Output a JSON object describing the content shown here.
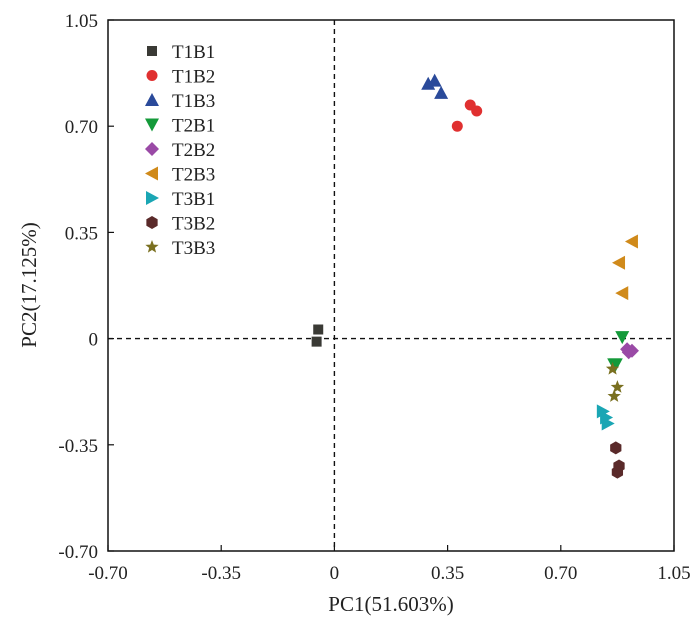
{
  "chart_data": {
    "type": "scatter",
    "xlabel": "PC1(51.603%)",
    "ylabel": "PC2(17.125%)",
    "xlim": [
      -0.7,
      1.05
    ],
    "ylim": [
      -0.7,
      1.05
    ],
    "xticks": [
      "-0.70",
      "-0.35",
      "0",
      "0.35",
      "0.70",
      "1.05"
    ],
    "yticks": [
      "-0.70",
      "-0.35",
      "0",
      "0.35",
      "0.70",
      "1.05"
    ],
    "xtick_values": [
      -0.7,
      -0.35,
      0,
      0.35,
      0.7,
      1.05
    ],
    "ytick_values": [
      -0.7,
      -0.35,
      0,
      0.35,
      0.7,
      1.05
    ],
    "reference_lines": {
      "x": 0,
      "y": 0,
      "style": "dashed"
    },
    "legend_position": "top-left",
    "series": [
      {
        "name": "T1B1",
        "marker": "square",
        "color": "#3a3a35",
        "points": [
          [
            -0.05,
            0.03
          ],
          [
            -0.055,
            -0.01
          ]
        ]
      },
      {
        "name": "T1B2",
        "marker": "circle",
        "color": "#e03030",
        "points": [
          [
            0.42,
            0.77
          ],
          [
            0.44,
            0.75
          ],
          [
            0.38,
            0.7
          ]
        ]
      },
      {
        "name": "T1B3",
        "marker": "triangle-up",
        "color": "#2a4a9a",
        "points": [
          [
            0.29,
            0.84
          ],
          [
            0.31,
            0.85
          ],
          [
            0.33,
            0.81
          ]
        ]
      },
      {
        "name": "T2B1",
        "marker": "triangle-down",
        "color": "#149a3a",
        "points": [
          [
            0.89,
            0.005
          ],
          [
            0.87,
            -0.085
          ],
          [
            0.865,
            -0.085
          ]
        ]
      },
      {
        "name": "T2B2",
        "marker": "diamond",
        "color": "#9a4aa6",
        "points": [
          [
            0.905,
            -0.035
          ],
          [
            0.92,
            -0.04
          ],
          [
            0.91,
            -0.045
          ]
        ]
      },
      {
        "name": "T2B3",
        "marker": "triangle-left",
        "color": "#d08a1a",
        "points": [
          [
            0.92,
            0.32
          ],
          [
            0.88,
            0.25
          ],
          [
            0.89,
            0.15
          ]
        ]
      },
      {
        "name": "T3B1",
        "marker": "triangle-right",
        "color": "#1aa6b4",
        "points": [
          [
            0.83,
            -0.24
          ],
          [
            0.84,
            -0.26
          ],
          [
            0.845,
            -0.28
          ]
        ]
      },
      {
        "name": "T3B2",
        "marker": "hexagon",
        "color": "#5a2a2a",
        "points": [
          [
            0.87,
            -0.36
          ],
          [
            0.88,
            -0.42
          ],
          [
            0.875,
            -0.44
          ]
        ]
      },
      {
        "name": "T3B3",
        "marker": "star",
        "color": "#7a7020",
        "points": [
          [
            0.875,
            -0.16
          ],
          [
            0.865,
            -0.19
          ],
          [
            0.86,
            -0.1
          ]
        ]
      }
    ]
  }
}
